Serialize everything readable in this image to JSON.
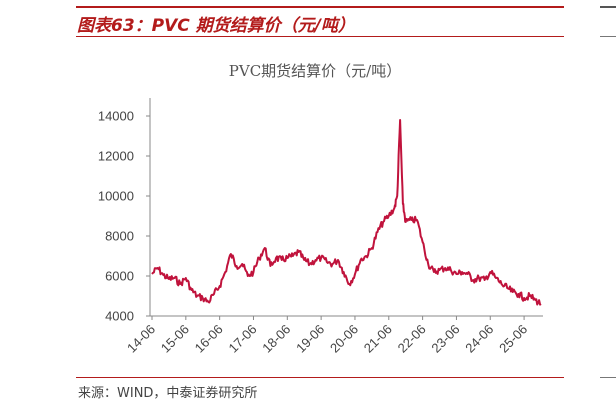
{
  "figure": {
    "title": "图表63：PVC 期货结算价（元/吨）",
    "source": "来源：WIND，中泰证券研究所"
  },
  "chart_data": {
    "type": "line",
    "title": "PVC期货结算价（元/吨）",
    "xlabel": "",
    "ylabel": "",
    "ylim": [
      4000,
      14000
    ],
    "yticks": [
      "4000",
      "6000",
      "8000",
      "10000",
      "12000",
      "14000"
    ],
    "xticks": [
      "14-06",
      "15-06",
      "16-06",
      "17-06",
      "18-06",
      "19-06",
      "20-06",
      "21-06",
      "22-06",
      "23-06",
      "24-06",
      "25-06"
    ],
    "line_color": "#c0133c",
    "grid": false,
    "x_start": "2014-06",
    "x_end": "2025-12",
    "series": [
      {
        "x": [
          "2014-06",
          "2014-08",
          "2014-10",
          "2014-12",
          "2015-02",
          "2015-04",
          "2015-06",
          "2015-08",
          "2015-10",
          "2015-12",
          "2016-02",
          "2016-04",
          "2016-06",
          "2016-08",
          "2016-10",
          "2016-12",
          "2017-02",
          "2017-04",
          "2017-06",
          "2017-08",
          "2017-10",
          "2017-12",
          "2018-02",
          "2018-04",
          "2018-06",
          "2018-08",
          "2018-10",
          "2018-12",
          "2019-02",
          "2019-04",
          "2019-06",
          "2019-08",
          "2019-10",
          "2019-12",
          "2020-02",
          "2020-04",
          "2020-06",
          "2020-08",
          "2020-10",
          "2020-12",
          "2021-02",
          "2021-04",
          "2021-06",
          "2021-08",
          "2021-09",
          "2021-10",
          "2021-11",
          "2021-12",
          "2022-02",
          "2022-04",
          "2022-06",
          "2022-08",
          "2022-10",
          "2022-12",
          "2023-02",
          "2023-04",
          "2023-06",
          "2023-08",
          "2023-10",
          "2023-12",
          "2024-02",
          "2024-04",
          "2024-06",
          "2024-08",
          "2024-10",
          "2024-12",
          "2025-02",
          "2025-04",
          "2025-06",
          "2025-08",
          "2025-10",
          "2025-12"
        ],
        "values": [
          6100,
          6400,
          6050,
          5850,
          5900,
          5600,
          5900,
          5300,
          5000,
          4900,
          4700,
          5100,
          5500,
          6200,
          7100,
          6500,
          6600,
          6000,
          6200,
          6900,
          7400,
          6500,
          6900,
          6800,
          6900,
          7000,
          7200,
          6800,
          6600,
          6800,
          6900,
          6700,
          6600,
          6800,
          6200,
          5600,
          6100,
          6800,
          7000,
          7400,
          8200,
          8700,
          9000,
          9400,
          10000,
          13800,
          9600,
          8700,
          8800,
          8800,
          7700,
          6600,
          6200,
          6300,
          6400,
          6300,
          6100,
          6200,
          6100,
          5800,
          5900,
          5800,
          6200,
          5900,
          5600,
          5400,
          5200,
          5100,
          4900,
          5000,
          4800,
          4600
        ]
      }
    ]
  }
}
